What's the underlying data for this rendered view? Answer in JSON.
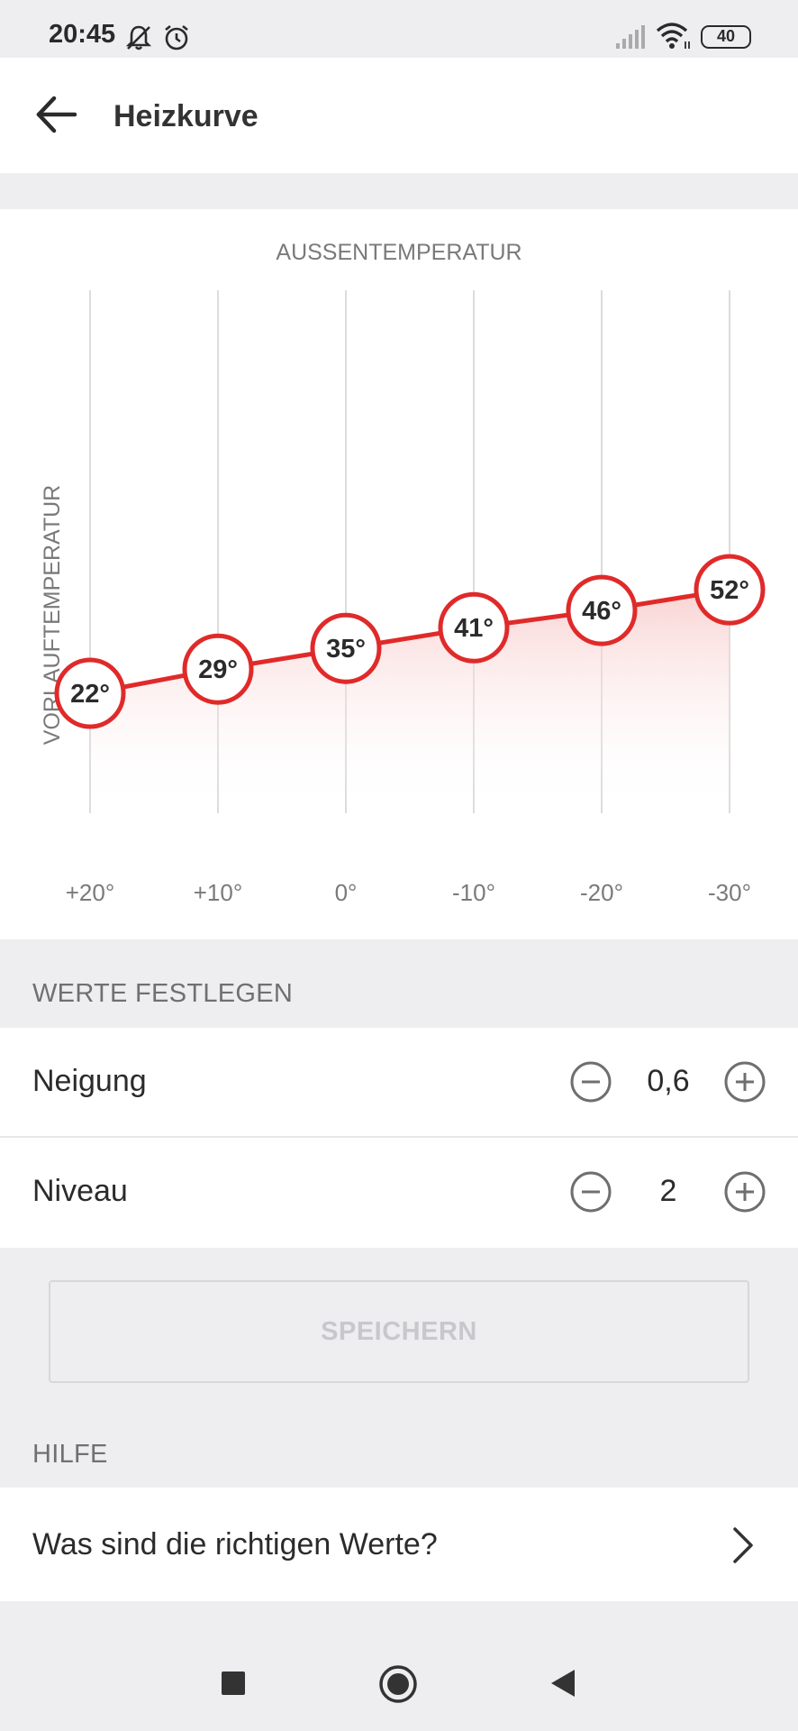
{
  "status_bar": {
    "time": "20:45",
    "icons": [
      "bell-off-icon",
      "alarm-icon",
      "signal-icon",
      "wifi-icon",
      "battery-icon"
    ],
    "battery": "40"
  },
  "app_bar": {
    "title": "Heizkurve",
    "back_icon": "arrow-left-icon"
  },
  "chart_data": {
    "type": "line",
    "title": "",
    "xlabel": "AUSSENTEMPERATUR",
    "ylabel": "VORLAUFTEMPERATUR",
    "categories": [
      "+20°",
      "+10°",
      "0°",
      "-10°",
      "-20°",
      "-30°"
    ],
    "series": [
      {
        "values": [
          22,
          29,
          35,
          41,
          46,
          52
        ],
        "labels": [
          "22°",
          "29°",
          "35°",
          "41°",
          "46°",
          "52°"
        ]
      }
    ],
    "grid": true,
    "line_color": "#e02a2a"
  },
  "werte": {
    "header": "WERTE FESTLEGEN",
    "neigung": {
      "label": "Neigung",
      "value": "0,6"
    },
    "niveau": {
      "label": "Niveau",
      "value": "2"
    }
  },
  "save_label": "SPEICHERN",
  "hilfe": {
    "header": "HILFE",
    "item_label": "Was sind die richtigen Werte?"
  },
  "nav": [
    "recents-square-icon",
    "home-circle-icon",
    "back-triangle-icon"
  ]
}
